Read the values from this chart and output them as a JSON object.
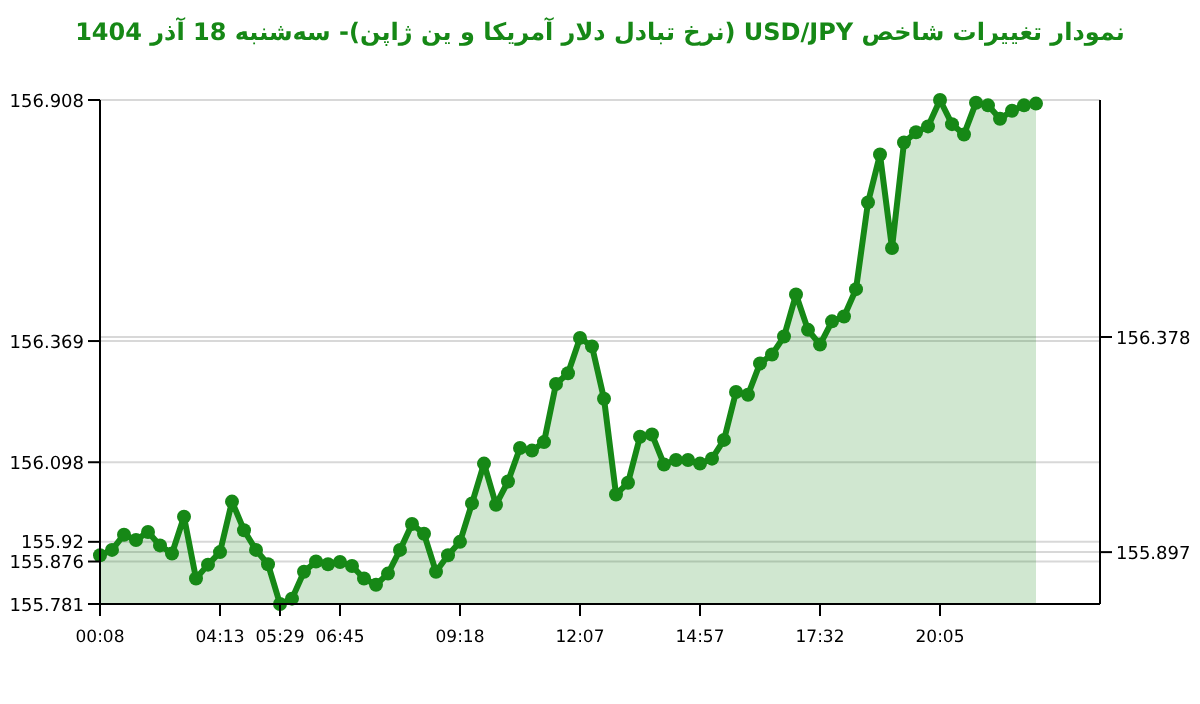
{
  "chart_data": {
    "type": "area",
    "title": "نمودار تغییرات شاخص USD/JPY (نرخ تبادل دلار آمریکا و ین ژاپن)- سه‌شنبه  18 آذر 1404",
    "categories": [
      "00:08",
      null,
      null,
      null,
      null,
      null,
      null,
      null,
      null,
      null,
      "04:13",
      null,
      null,
      null,
      null,
      "05:29",
      null,
      null,
      null,
      null,
      "06:45",
      null,
      null,
      null,
      null,
      null,
      null,
      null,
      null,
      null,
      "09:18",
      null,
      null,
      null,
      null,
      null,
      null,
      null,
      null,
      null,
      "12:07",
      null,
      null,
      null,
      null,
      null,
      null,
      null,
      null,
      null,
      "14:57",
      null,
      null,
      null,
      null,
      null,
      null,
      null,
      null,
      null,
      "17:32",
      null,
      null,
      null,
      null,
      null,
      null,
      null,
      null,
      null,
      "20:05",
      null,
      null,
      null,
      null,
      null,
      null,
      null,
      null
    ],
    "values": [
      155.89,
      155.902,
      155.936,
      155.924,
      155.942,
      155.912,
      155.894,
      155.976,
      155.838,
      155.869,
      155.897,
      156.01,
      155.946,
      155.902,
      155.87,
      155.781,
      155.793,
      155.853,
      155.876,
      155.87,
      155.875,
      155.866,
      155.838,
      155.824,
      155.849,
      155.902,
      155.96,
      155.938,
      155.853,
      155.89,
      155.92,
      156.006,
      156.095,
      156.003,
      156.055,
      156.13,
      156.124,
      156.143,
      156.273,
      156.297,
      156.376,
      156.357,
      156.24,
      156.026,
      156.052,
      156.155,
      156.16,
      156.093,
      156.103,
      156.103,
      156.095,
      156.106,
      156.148,
      156.255,
      156.249,
      156.319,
      156.339,
      156.379,
      156.473,
      156.394,
      156.361,
      156.413,
      156.424,
      156.485,
      156.679,
      156.786,
      156.577,
      156.813,
      156.836,
      156.849,
      156.908,
      156.854,
      156.831,
      156.902,
      156.896,
      156.866,
      156.884,
      156.896,
      156.9
    ],
    "color": "#168816",
    "ylim": [
      155.781,
      156.908
    ],
    "yticks": [
      155.781,
      155.876,
      155.92,
      156.098,
      156.369,
      156.908
    ],
    "y2lim": [
      155.781,
      156.908
    ],
    "y2ticks": [
      155.897,
      156.378
    ],
    "grid": "y",
    "marker": "circle",
    "line_style": "solid"
  }
}
